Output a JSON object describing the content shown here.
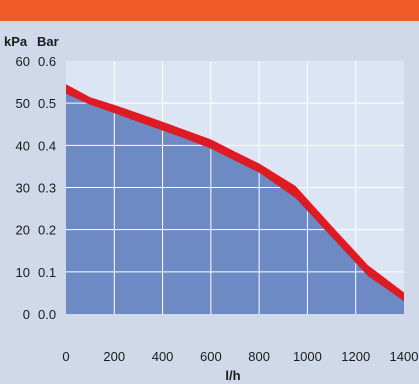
{
  "header": {
    "bar_color": "#f05a28"
  },
  "chart_data": {
    "type": "area",
    "xlabel": "l/h",
    "ylabel_primary": "kPa",
    "ylabel_secondary": "Bar",
    "xlim": [
      0,
      1400
    ],
    "ylim": [
      0,
      60
    ],
    "x_ticks": [
      "0",
      "200",
      "400",
      "600",
      "800",
      "1000",
      "1200",
      "1400"
    ],
    "y_ticks_kpa": [
      "0",
      "10",
      "20",
      "30",
      "40",
      "50",
      "60"
    ],
    "y_ticks_bar": [
      "0.0",
      "0.1",
      "0.2",
      "0.3",
      "0.4",
      "0.5",
      "0.6"
    ],
    "grid": true,
    "series": [
      {
        "x": [
          0,
          100,
          200,
          300,
          400,
          500,
          600,
          700,
          800,
          950,
          1100,
          1250,
          1400
        ],
        "y": [
          52.2,
          49.6,
          47.6,
          45.5,
          43.5,
          41.4,
          39.2,
          36.3,
          33.5,
          27.5,
          18.2,
          9.0,
          3.0
        ],
        "y_upper": [
          54.5,
          51.4,
          49.6,
          47.6,
          45.6,
          43.5,
          41.4,
          38.5,
          35.7,
          30.4,
          20.9,
          11.6,
          5.1
        ]
      }
    ],
    "colors": {
      "plot_background": "#dce5f3",
      "area_fill": "#6d8ac4",
      "band": "#dd1b24",
      "grid": "#ffffff",
      "page_background": "#cfd9ea"
    }
  }
}
